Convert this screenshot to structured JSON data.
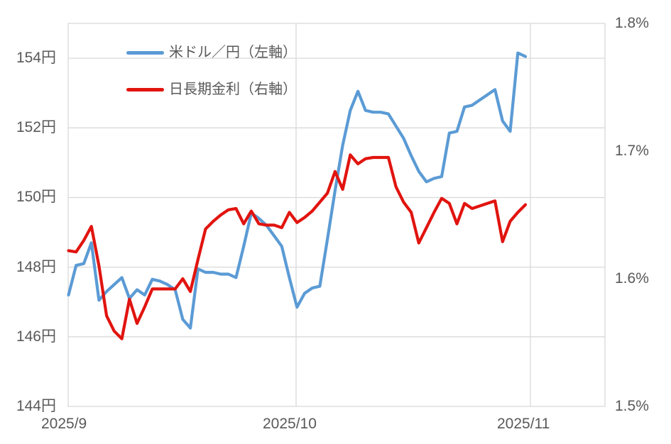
{
  "chart_data": {
    "type": "line",
    "title": "",
    "x_dates": [
      "9/1",
      "9/2",
      "9/3",
      "9/4",
      "9/5",
      "9/6",
      "9/7",
      "9/8",
      "9/9",
      "9/10",
      "9/11",
      "9/12",
      "9/13",
      "9/14",
      "9/15",
      "9/16",
      "9/17",
      "9/18",
      "9/19",
      "9/20",
      "9/21",
      "9/22",
      "9/23",
      "9/24",
      "9/25",
      "9/26",
      "9/27",
      "9/28",
      "9/29",
      "9/30",
      "10/1",
      "10/2",
      "10/3",
      "10/4",
      "10/5",
      "10/6",
      "10/7",
      "10/8",
      "10/9",
      "10/10",
      "10/11",
      "10/12",
      "10/13",
      "10/14",
      "10/15",
      "10/16",
      "10/17",
      "10/18",
      "10/19",
      "10/20",
      "10/21",
      "10/22",
      "10/23",
      "10/24",
      "10/25",
      "10/26",
      "10/27",
      "10/28",
      "10/29",
      "10/30",
      "10/31"
    ],
    "series": [
      {
        "name": "米ドル／円（左軸）",
        "axis": "left",
        "color": "#5b9bd5",
        "values": [
          147.2,
          148.05,
          148.1,
          148.7,
          147.05,
          147.3,
          147.5,
          147.7,
          147.1,
          147.35,
          147.2,
          147.65,
          147.6,
          147.5,
          147.35,
          146.5,
          146.25,
          147.95,
          147.85,
          147.85,
          147.8,
          147.8,
          147.7,
          148.6,
          149.55,
          149.4,
          149.2,
          148.9,
          148.6,
          147.7,
          146.85,
          147.25,
          147.4,
          147.45,
          148.8,
          150.2,
          151.5,
          152.5,
          153.05,
          152.5,
          152.45,
          152.45,
          152.4,
          152.05,
          151.7,
          151.2,
          150.75,
          150.45,
          150.55,
          150.6,
          151.85,
          151.9,
          152.6,
          152.65,
          152.8,
          152.95,
          153.1,
          152.2,
          151.9,
          154.15,
          154.05
        ]
      },
      {
        "name": "日長期金利（右軸）",
        "axis": "right",
        "color": "#e1140f",
        "values": [
          1.622,
          1.621,
          1.63,
          1.641,
          1.61,
          1.571,
          1.559,
          1.553,
          1.584,
          1.565,
          1.578,
          1.592,
          1.592,
          1.592,
          1.592,
          1.6,
          1.59,
          1.615,
          1.639,
          1.645,
          1.65,
          1.654,
          1.655,
          1.643,
          1.653,
          1.643,
          1.642,
          1.642,
          1.64,
          1.652,
          1.644,
          1.648,
          1.653,
          1.66,
          1.667,
          1.684,
          1.67,
          1.697,
          1.69,
          1.694,
          1.695,
          1.695,
          1.695,
          1.672,
          1.66,
          1.652,
          1.628,
          1.64,
          1.652,
          1.663,
          1.659,
          1.643,
          1.659,
          1.655,
          1.657,
          1.659,
          1.661,
          1.629,
          1.645,
          1.652,
          1.658
        ]
      }
    ],
    "left_axis": {
      "min": 144,
      "max": 155,
      "unit": "円",
      "ticks": [
        "154円",
        "152円",
        "150円",
        "148円",
        "146円",
        "144円"
      ],
      "tick_values": [
        154,
        152,
        150,
        148,
        146,
        144
      ]
    },
    "right_axis": {
      "min": 1.5,
      "max": 1.8,
      "unit": "%",
      "ticks": [
        "1.8%",
        "1.7%",
        "1.6%",
        "1.5%"
      ],
      "tick_values": [
        1.8,
        1.7,
        1.6,
        1.5
      ]
    },
    "x_axis": {
      "ticks": [
        "2025/9",
        "2025/10",
        "2025/11"
      ]
    },
    "grid": true,
    "legend_position": "top-left-inside"
  },
  "colors": {
    "usdjpy_line": "#5b9bd5",
    "yield_line": "#e1140f",
    "gridline": "#d9d9d9",
    "axis_text": "#595959",
    "background": "#ffffff"
  }
}
